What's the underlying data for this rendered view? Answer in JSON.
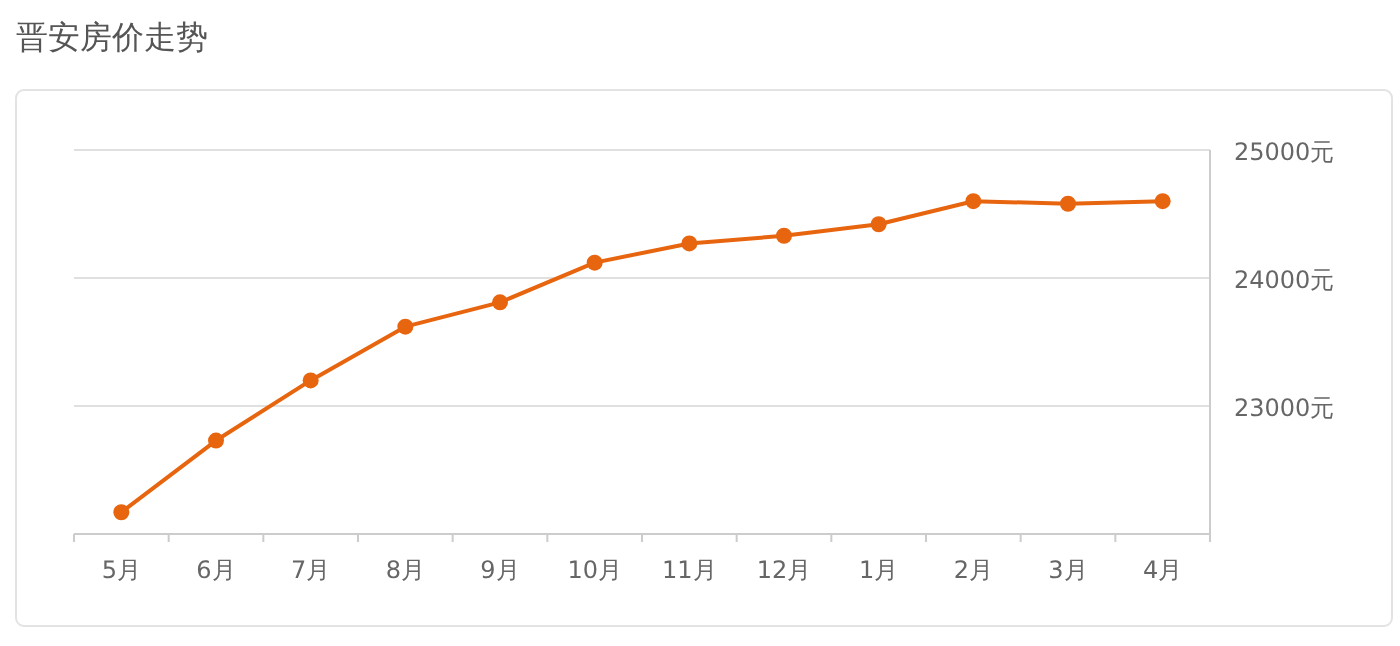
{
  "chart_data": {
    "type": "line",
    "title": "晋安房价走势",
    "categories": [
      "5月",
      "6月",
      "7月",
      "8月",
      "9月",
      "10月",
      "11月",
      "12月",
      "1月",
      "2月",
      "3月",
      "4月"
    ],
    "series": [
      {
        "color": "#e8650f",
        "values": [
          22170,
          22730,
          23200,
          23620,
          23810,
          24120,
          24270,
          24330,
          24420,
          24600,
          24580,
          24600
        ]
      }
    ],
    "ylim": [
      22000,
      25000
    ],
    "yticks": [
      {
        "value": 23000,
        "label": "23000元"
      },
      {
        "value": 24000,
        "label": "24000元"
      },
      {
        "value": 25000,
        "label": "25000元"
      }
    ],
    "grid": "y",
    "marker": "circle"
  }
}
